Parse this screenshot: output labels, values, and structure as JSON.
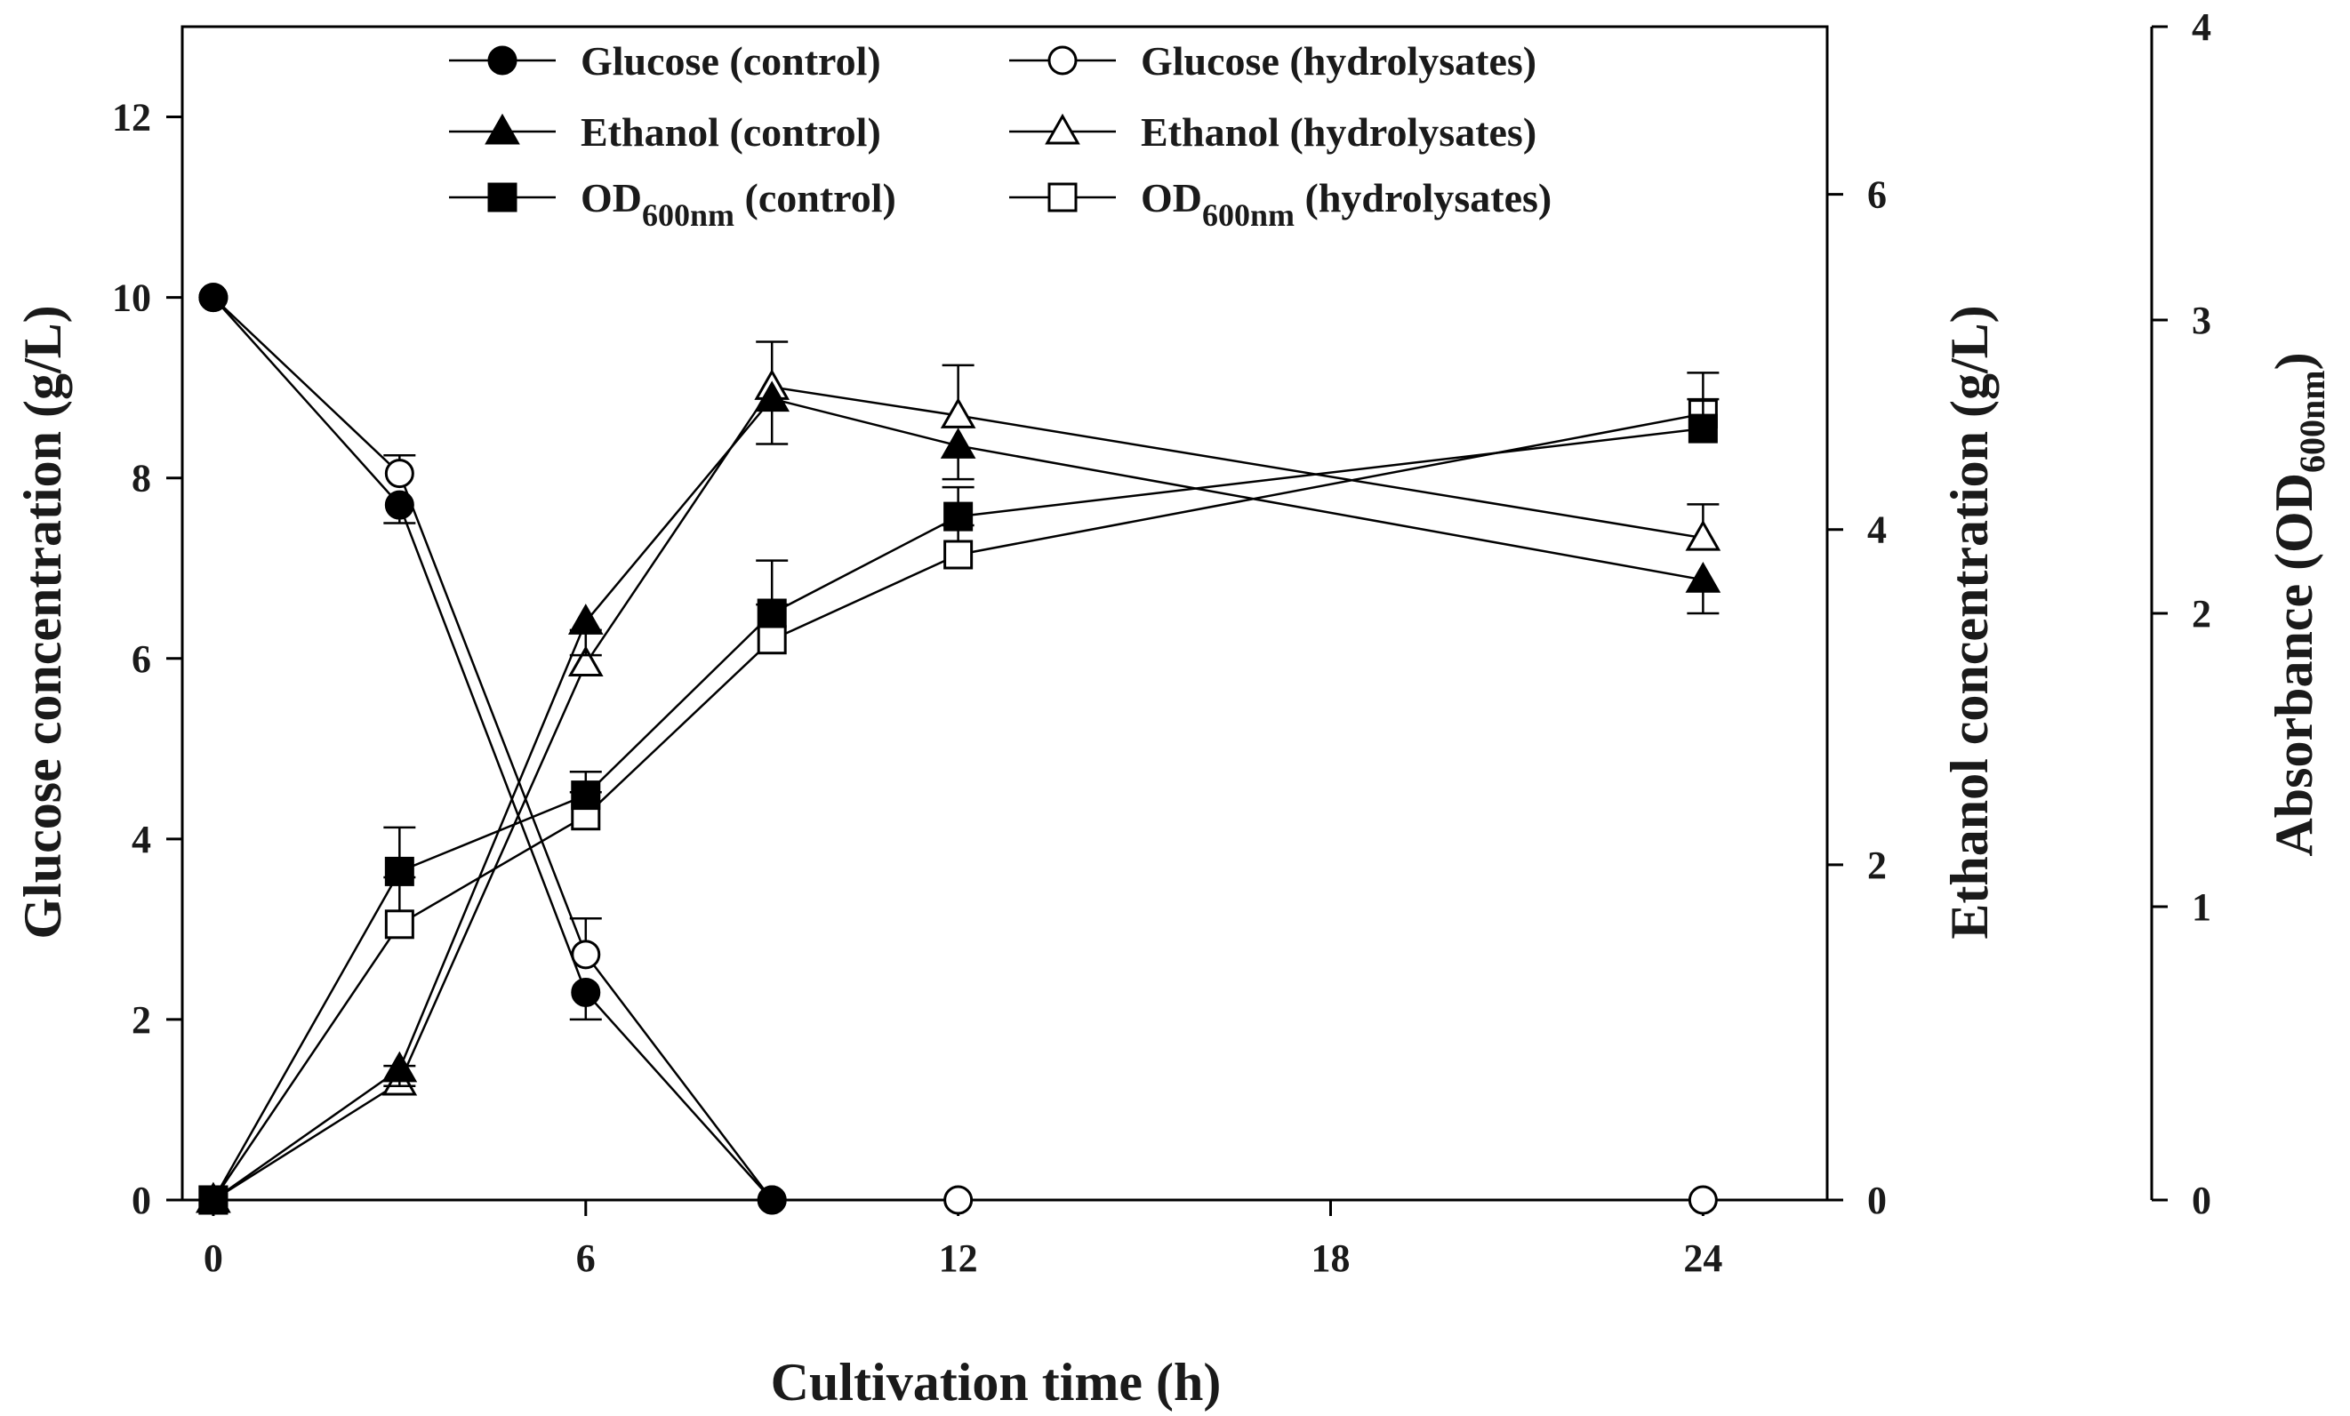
{
  "chart_data": {
    "type": "line",
    "title": "",
    "xlabel": "Cultivation time (h)",
    "ylabel_left": "Glucose concentration (g/L)",
    "ylabel_right": "Ethanol concentration (g/L)",
    "ylabel_far_right": {
      "prefix": "Absorbance (OD",
      "sub": "600nm",
      "suffix": ")"
    },
    "xlim": [
      -0.5,
      26
    ],
    "ylim_left": [
      0,
      13
    ],
    "ylim_right": [
      0,
      7
    ],
    "ylim_far_right": [
      0,
      4
    ],
    "x_ticks": [
      0,
      6,
      12,
      18,
      24
    ],
    "x_tick_labels": [
      "0",
      "6",
      "12",
      "18",
      "24"
    ],
    "y_left_ticks": [
      0,
      2,
      4,
      6,
      8,
      10,
      12
    ],
    "y_left_tick_labels": [
      "0",
      "2",
      "4",
      "6",
      "8",
      "10",
      "12"
    ],
    "y_right_ticks": [
      0,
      2,
      4,
      6
    ],
    "y_right_tick_labels": [
      "0",
      "2",
      "4",
      "6"
    ],
    "y_far_right_ticks": [
      0,
      1,
      2,
      3,
      4
    ],
    "y_far_right_tick_labels": [
      "0",
      "1",
      "2",
      "3",
      "4"
    ],
    "legend_position": "top",
    "x": [
      0,
      3,
      6,
      9,
      12,
      24
    ],
    "series": [
      {
        "id": "glucose-control",
        "name": "Glucose (control)",
        "axis": "left",
        "marker": "circle",
        "filled": true,
        "values": [
          10,
          7.7,
          2.3,
          0,
          null,
          null
        ],
        "errors": [
          0,
          0.2,
          0.3,
          0,
          null,
          null
        ],
        "legend_col": 0,
        "legend_row": 0
      },
      {
        "id": "glucose-hydrolysates",
        "name": "Glucose (hydrolysates)",
        "axis": "left",
        "marker": "circle",
        "filled": false,
        "values": [
          10,
          8.05,
          2.72,
          0,
          0,
          0
        ],
        "errors": [
          0,
          0.2,
          0.4,
          0,
          0,
          0
        ],
        "legend_col": 1,
        "legend_row": 0
      },
      {
        "id": "ethanol-control",
        "name": "Ethanol (control)",
        "axis": "right",
        "marker": "triangle",
        "filled": true,
        "values": [
          0,
          0.78,
          3.45,
          4.78,
          4.5,
          3.7
        ],
        "errors": [
          0,
          0.1,
          0.2,
          0.27,
          0.2,
          0.2
        ],
        "legend_col": 0,
        "legend_row": 1
      },
      {
        "id": "ethanol-hydrolysates",
        "name": "Ethanol (hydrolysates)",
        "axis": "right",
        "marker": "triangle",
        "filled": false,
        "values": [
          0,
          0.7,
          3.2,
          4.85,
          4.68,
          3.95
        ],
        "errors": [
          0,
          0.1,
          0.2,
          0.27,
          0.3,
          0.2
        ],
        "legend_col": 1,
        "legend_row": 1
      },
      {
        "id": "od-control",
        "name_prefix": "OD",
        "name_sub": "600nm",
        "name_suffix": " (control)",
        "axis": "far_right",
        "marker": "square",
        "filled": true,
        "values": [
          0,
          1.12,
          1.38,
          2.0,
          2.33,
          2.63
        ],
        "errors": [
          0,
          0.15,
          0.08,
          0.18,
          0.1,
          0.1
        ],
        "legend_col": 0,
        "legend_row": 2
      },
      {
        "id": "od-hydrolysates",
        "name_prefix": "OD",
        "name_sub": "600nm",
        "name_suffix": " (hydrolysates)",
        "axis": "far_right",
        "marker": "square",
        "filled": false,
        "values": [
          0,
          0.94,
          1.31,
          1.91,
          2.2,
          2.68
        ],
        "errors": [
          0,
          0.16,
          0.08,
          0.12,
          0.1,
          0.14
        ],
        "legend_col": 1,
        "legend_row": 2
      }
    ]
  }
}
